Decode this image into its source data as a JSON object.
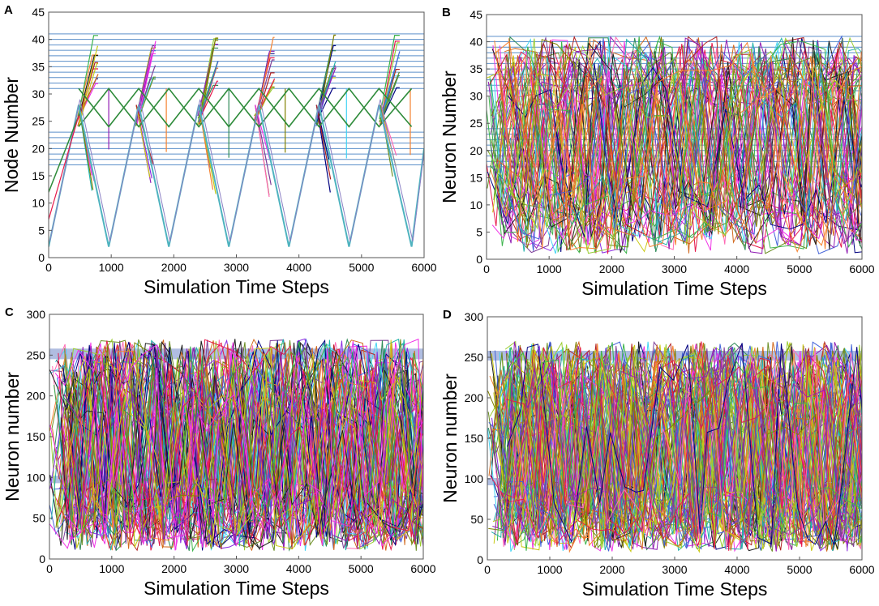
{
  "figure": "Four raster-like panels of neuron/node number versus simulation time steps",
  "chart_data": [
    {
      "panel": "A",
      "type": "line",
      "xlabel": "Simulation Time Steps",
      "ylabel": "Node Number",
      "xlim": [
        0,
        6000
      ],
      "ylim": [
        0,
        45
      ],
      "xticks": [
        0,
        1000,
        2000,
        3000,
        4000,
        5000,
        6000
      ],
      "yticks": [
        0,
        5,
        10,
        15,
        20,
        25,
        30,
        35,
        40,
        45
      ],
      "hlines": [
        17,
        18,
        19,
        20,
        21,
        22,
        23,
        31,
        32,
        33,
        34,
        35,
        36,
        37,
        38,
        39,
        40,
        41
      ],
      "hline_color": "#5b8fc9",
      "sweep_points": [
        [
          0,
          2
        ],
        [
          480,
          28
        ],
        [
          960,
          2
        ],
        [
          1440,
          28
        ],
        [
          1920,
          2
        ],
        [
          2400,
          28
        ],
        [
          2880,
          2
        ],
        [
          3360,
          28
        ],
        [
          3840,
          2
        ],
        [
          4320,
          28
        ],
        [
          4800,
          2
        ],
        [
          5280,
          28
        ],
        [
          5800,
          2
        ],
        [
          6000,
          20
        ]
      ],
      "sweep_color": "#4fb3bf",
      "green_zigzag": [
        [
          480,
          24
        ],
        [
          960,
          31
        ],
        [
          1440,
          24
        ],
        [
          1920,
          31
        ],
        [
          2400,
          24
        ],
        [
          2880,
          31
        ],
        [
          3360,
          24
        ],
        [
          3840,
          31
        ],
        [
          4320,
          24
        ],
        [
          4800,
          31
        ],
        [
          5280,
          24
        ],
        [
          5800,
          31
        ]
      ],
      "green_color": "#2e8b3a",
      "burst_peaks_x": [
        780,
        1700,
        2700,
        3600,
        4580,
        5600
      ],
      "n_traces": 60
    },
    {
      "panel": "B",
      "type": "line",
      "xlabel": "Simulation Time Steps",
      "ylabel": "Neuron Number",
      "xlim": [
        0,
        6000
      ],
      "ylim": [
        0,
        45
      ],
      "xticks": [
        0,
        1000,
        2000,
        3000,
        4000,
        5000,
        6000
      ],
      "yticks": [
        0,
        5,
        10,
        15,
        20,
        25,
        30,
        35,
        40,
        45
      ],
      "hlines": [
        17,
        18,
        19,
        20,
        21,
        22,
        23,
        24,
        31,
        32,
        33,
        34,
        35,
        36,
        37,
        38,
        39,
        40,
        41
      ],
      "hline_color": "#5b8fc9",
      "n_traces": 70
    },
    {
      "panel": "C",
      "type": "line",
      "xlabel": "Simulation Time Steps",
      "ylabel": "Neuron number",
      "xlim": [
        0,
        6000
      ],
      "ylim": [
        0,
        300
      ],
      "xticks": [
        0,
        1000,
        2000,
        3000,
        4000,
        5000,
        6000
      ],
      "yticks": [
        0,
        50,
        100,
        150,
        200,
        250,
        300
      ],
      "bands": [
        [
          245,
          258
        ],
        [
          93,
          102
        ]
      ],
      "band_color": "#6f86c8",
      "n_traces": 90
    },
    {
      "panel": "D",
      "type": "line",
      "xlabel": "Simulation Time Steps",
      "ylabel": "Neuron number",
      "xlim": [
        0,
        6000
      ],
      "ylim": [
        0,
        300
      ],
      "xticks": [
        0,
        1000,
        2000,
        3000,
        4000,
        5000,
        6000
      ],
      "yticks": [
        0,
        50,
        100,
        150,
        200,
        250,
        300
      ],
      "bands": [
        [
          246,
          258
        ],
        [
          92,
          101
        ]
      ],
      "band_color": "#6f86c8",
      "n_traces": 100
    }
  ],
  "palette": [
    "#e6194b",
    "#3cb44b",
    "#c9c914",
    "#4363d8",
    "#f58231",
    "#911eb4",
    "#42d4f4",
    "#f032e6",
    "#9acd32",
    "#1f1f1f",
    "#7f3f98",
    "#2e8b57",
    "#d2691e",
    "#8a2be2",
    "#20b2aa",
    "#b22222",
    "#000080",
    "#ff69b4",
    "#6b8e23",
    "#808000"
  ]
}
